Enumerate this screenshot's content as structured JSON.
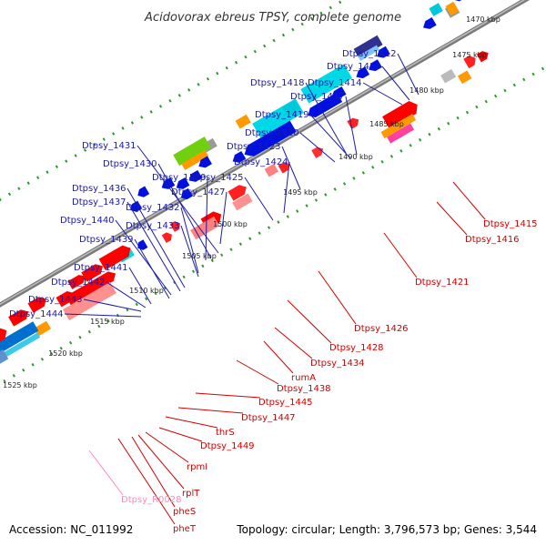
{
  "title": "Acidovorax ebreus TPSY, complete genome",
  "footer": {
    "accession": "Accession: NC_011992",
    "summary": "Topology: circular; Length: 3,796,573 bp; Genes: 3,544"
  },
  "colors": {
    "backbone": "#777777",
    "dotted_ring": "#229922",
    "label_blue": "#1a1aaa",
    "label_red": "#d40000",
    "label_pink": "#ff88c0"
  },
  "kbp_ticks": [
    "1470 kbp",
    "1475 kbp",
    "1480 kbp",
    "1485 kbp",
    "1490 kbp",
    "1495 kbp",
    "1500 kbp",
    "1505 kbp",
    "1510 kbp",
    "1515 kbp",
    "1520 kbp",
    "1525 kbp"
  ],
  "labels_upper": [
    "Dtpsy_1412",
    "Dtpsy_1413",
    "Dtpsy_1414",
    "Dtpsy_1418",
    "Dtpsy_1417",
    "Dtpsy_1419",
    "Dtpsy_1420",
    "Dtpsy_1423",
    "Dtpsy_1424",
    "Dtpsy_1431",
    "Dtpsy_1430",
    "Dtpsy_1429",
    "Dtpsy_1425",
    "Dtpsy_1427",
    "Dtpsy_1436",
    "Dtpsy_1437",
    "Dtpsy_1432",
    "Dtpsy_1440",
    "Dtpsy_1433",
    "Dtpsy_1439",
    "Dtpsy_1441",
    "Dtpsy_1442",
    "Dtpsy_1443",
    "Dtpsy_1444"
  ],
  "labels_lower": [
    "Dtpsy_1415",
    "Dtpsy_1416",
    "Dtpsy_1421",
    "Dtpsy_1426",
    "Dtpsy_1428",
    "Dtpsy_1434",
    "rumA",
    "Dtpsy_1438",
    "Dtpsy_1445",
    "Dtpsy_1447",
    "thrS",
    "Dtpsy_1449",
    "rpmI",
    "rplT",
    "Dtpsy_R0028",
    "pheS",
    "pheT"
  ]
}
